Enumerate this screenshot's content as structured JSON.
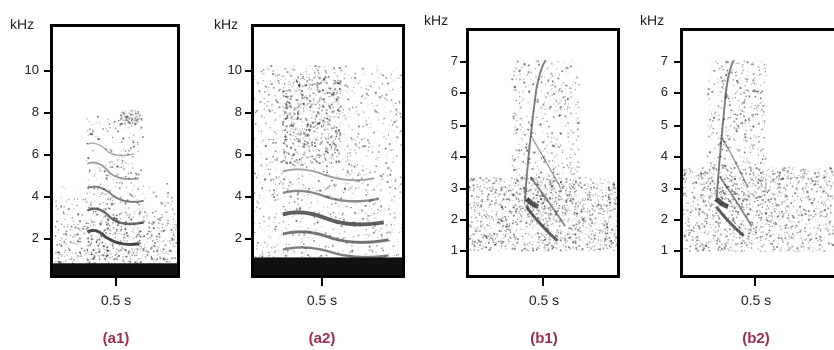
{
  "panels": [
    {
      "id": "a1",
      "caption": "(a1)",
      "unit": "kHz",
      "time_label": "0.5 s",
      "ticks": [
        "10",
        "8",
        "6",
        "4",
        "2"
      ]
    },
    {
      "id": "a2",
      "caption": "(a2)",
      "unit": "kHz",
      "time_label": "0.5 s",
      "ticks": [
        "10",
        "8",
        "6",
        "4",
        "2"
      ]
    },
    {
      "id": "b1",
      "caption": "(b1)",
      "unit": "kHz",
      "time_label": "0.5 s",
      "ticks": [
        "7",
        "6",
        "5",
        "4",
        "3",
        "2",
        "1"
      ]
    },
    {
      "id": "b2",
      "caption": "(b2)",
      "unit": "kHz",
      "time_label": "0.5 s",
      "ticks": [
        "7",
        "6",
        "5",
        "4",
        "3",
        "2",
        "1"
      ]
    }
  ],
  "colors": {
    "caption": "#9b2c4a",
    "frame": "#000000",
    "noise": "#2a2a2a"
  }
}
